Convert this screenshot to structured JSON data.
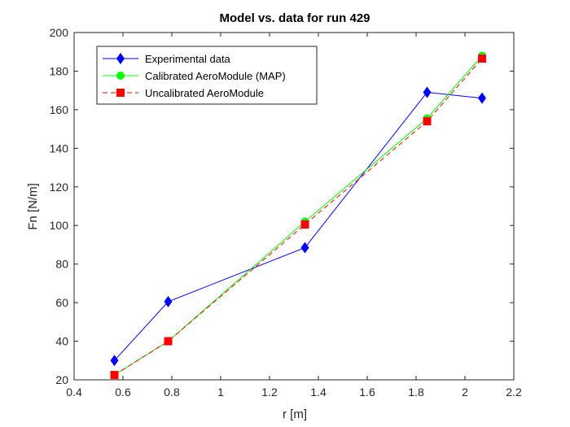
{
  "chart_data": {
    "type": "line",
    "title": "Model vs. data for run 429",
    "xlabel": "r [m]",
    "ylabel": "Fn [N/m]",
    "xlim": [
      0.4,
      2.2
    ],
    "ylim": [
      20,
      200
    ],
    "xticks": [
      0.4,
      0.6,
      0.8,
      1,
      1.2,
      1.4,
      1.6,
      1.8,
      2,
      2.2
    ],
    "xtick_labels": [
      "0.4",
      "0.6",
      "0.8",
      "1",
      "1.2",
      "1.4",
      "1.6",
      "1.8",
      "2",
      "2.2"
    ],
    "yticks": [
      20,
      40,
      60,
      80,
      100,
      120,
      140,
      160,
      180,
      200
    ],
    "ytick_labels": [
      "20",
      "40",
      "60",
      "80",
      "100",
      "120",
      "140",
      "160",
      "180",
      "200"
    ],
    "grid": true,
    "legend_position": "top-left",
    "series": [
      {
        "name": "Experimental data",
        "color": "#0000ff",
        "marker": "diamond",
        "line_style": "solid",
        "x": [
          0.565,
          0.785,
          1.345,
          1.845,
          2.07
        ],
        "y": [
          30,
          60.5,
          88.5,
          169,
          166
        ]
      },
      {
        "name": "Calibrated AeroModule (MAP)",
        "color": "#00ff00",
        "marker": "circle",
        "line_style": "solid",
        "x": [
          0.565,
          0.785,
          1.345,
          1.845,
          2.07
        ],
        "y": [
          22.5,
          40,
          102,
          155.5,
          188
        ]
      },
      {
        "name": "Uncalibrated AeroModule",
        "color": "#ff0000",
        "marker": "square",
        "line_style": "dashed",
        "x": [
          0.565,
          0.785,
          1.345,
          1.845,
          2.07
        ],
        "y": [
          22.5,
          40,
          100.5,
          154,
          186.5
        ]
      }
    ]
  }
}
